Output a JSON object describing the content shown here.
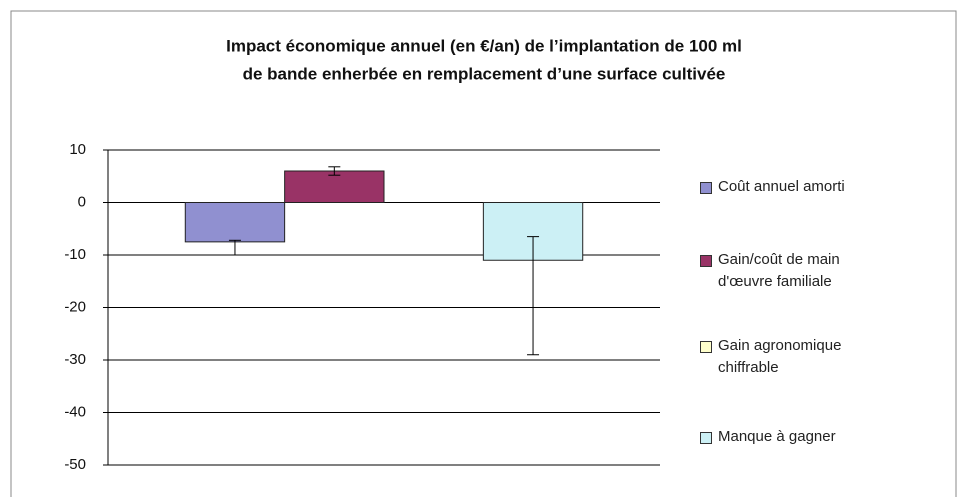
{
  "chart_data": {
    "type": "bar",
    "title": [
      "Impact économique annuel (en €/an) de l’implantation de 100 ml",
      "de bande enherbée en remplacement d’une surface cultivée"
    ],
    "categories": [
      null
    ],
    "series": [
      {
        "name": "Coût annuel amorti",
        "color": "#9090d0",
        "values": [
          -7.5
        ],
        "errors": [
          [
            2.5,
            0.3
          ]
        ]
      },
      {
        "name": "Gain/coût de main d'œuvre familiale",
        "color": "#993366",
        "values": [
          6
        ],
        "errors": [
          [
            0.8,
            0.8
          ]
        ]
      },
      {
        "name": "Gain agronomique chiffrable",
        "color": "#ffffcc",
        "values": [
          0
        ],
        "errors": [
          null
        ]
      },
      {
        "name": "Manque à gagner",
        "color": "#ccf0f5",
        "values": [
          -11
        ],
        "errors": [
          [
            18,
            4.5
          ]
        ]
      }
    ],
    "ylim": [
      -50,
      10
    ],
    "yticks": [
      -50,
      -40,
      -30,
      -20,
      -10,
      0,
      10
    ],
    "grid": true,
    "legend": "right"
  }
}
